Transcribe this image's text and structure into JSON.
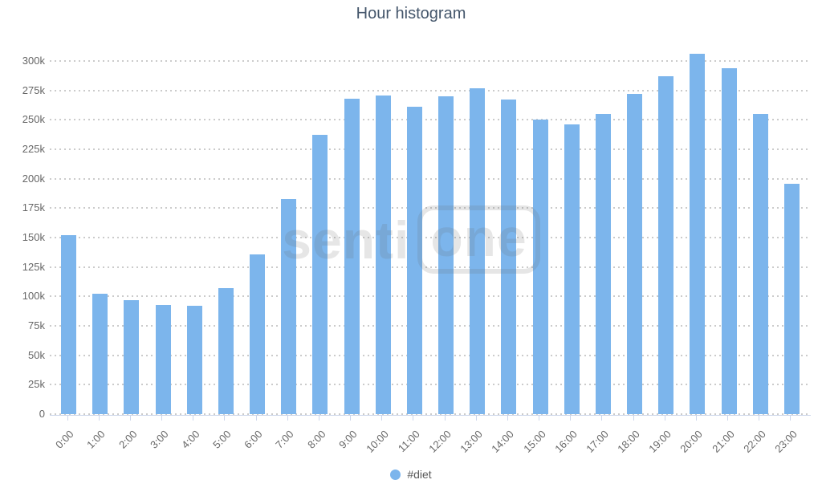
{
  "title": "Hour histogram",
  "watermark": {
    "text_left": "senti",
    "text_right": "one"
  },
  "legend": {
    "label": "#diet",
    "marker_color": "#7cb5ec"
  },
  "colors": {
    "bar": "#7cb5ec",
    "title_text": "#44566b",
    "axis_label_text": "#666666",
    "gridline": "#cbcbcb",
    "axis_line": "#ccd6eb",
    "legend_text": "#595959"
  },
  "chart_data": {
    "type": "bar",
    "title": "Hour histogram",
    "xlabel": "",
    "ylabel": "",
    "categories": [
      "0:00",
      "1:00",
      "2:00",
      "3:00",
      "4:00",
      "5:00",
      "6:00",
      "7:00",
      "8:00",
      "9:00",
      "10:00",
      "11:00",
      "12:00",
      "13:00",
      "14:00",
      "15:00",
      "16:00",
      "17:00",
      "18:00",
      "19:00",
      "20:00",
      "21:00",
      "22:00",
      "23:00"
    ],
    "series": [
      {
        "name": "#diet",
        "color": "#7cb5ec",
        "values": [
          152000,
          102000,
          97000,
          93000,
          92000,
          107000,
          136000,
          183000,
          237000,
          268000,
          271000,
          261000,
          270000,
          277000,
          267000,
          250000,
          246000,
          255000,
          272000,
          287000,
          306000,
          294000,
          255000,
          196000
        ]
      }
    ],
    "ylim": [
      0,
      300000
    ],
    "ytick_step": 25000,
    "ytick_labels": [
      "0",
      "25k",
      "50k",
      "75k",
      "100k",
      "125k",
      "150k",
      "175k",
      "200k",
      "225k",
      "250k",
      "275k",
      "300k"
    ],
    "grid": "horizontal-dotted",
    "legend_position": "bottom-center"
  }
}
